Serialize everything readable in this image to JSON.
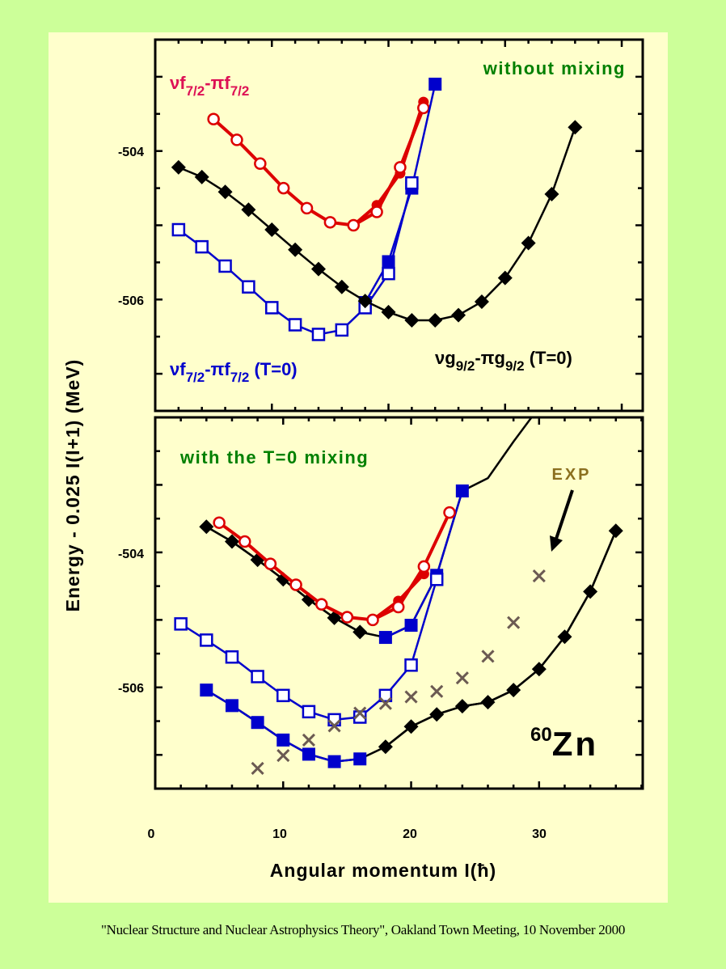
{
  "footer": "\"Nuclear Structure and Nuclear Astrophysics Theory\", Oakland Town Meeting, 10 November 2000",
  "colors": {
    "page_bg": "#ccff99",
    "slide_bg": "#ffffcc",
    "red": "#dd0000",
    "red_label": "#dd1155",
    "blue": "#0000cc",
    "black": "#000000",
    "green_label": "#008000",
    "exp_label": "#8b6f1e",
    "exp_marker": "#6b5a52"
  },
  "chart_data": [
    {
      "type": "line",
      "panel": "top",
      "title": "without mixing",
      "xlabel": "Angular momentum I(ħ)",
      "ylabel": "Energy - 0.025 I(I+1) (MeV)",
      "xlim": [
        0,
        41.8
      ],
      "ylim": [
        -507.5,
        -502.5
      ],
      "yticks": [
        -504,
        -506
      ],
      "ytick_labels": [
        "-504",
        "-506"
      ],
      "labels": {
        "red": {
          "main": "νf",
          "sub1": "7/2",
          "mid": "-πf",
          "sub2": "7/2",
          "tail": ""
        },
        "blue": {
          "main": "νf",
          "sub1": "7/2",
          "mid": "-πf",
          "sub2": "7/2",
          "tail": " (T=0)"
        },
        "black": {
          "main": "νg",
          "sub1": "9/2",
          "mid": "-πg",
          "sub2": "9/2",
          "tail": " (T=0)"
        }
      },
      "series": [
        {
          "name": "vf7/2-pif7/2 (filled)",
          "color": "red",
          "marker": "filled-circle",
          "x": [
            17,
            19,
            21,
            23
          ],
          "y": [
            -505.0,
            -504.73,
            -504.3,
            -503.34
          ]
        },
        {
          "name": "vf7/2-pif7/2",
          "color": "red",
          "marker": "open-circle",
          "x": [
            5,
            7,
            9,
            11,
            13,
            15,
            17,
            19,
            21,
            23
          ],
          "y": [
            -503.57,
            -503.85,
            -504.17,
            -504.5,
            -504.77,
            -504.96,
            -505.0,
            -504.82,
            -504.22,
            -503.42
          ]
        },
        {
          "name": "vf7/2-pif7/2 (T=0) filled",
          "color": "blue",
          "marker": "filled-square",
          "x": [
            18,
            20,
            22,
            24
          ],
          "y": [
            -506.04,
            -505.49,
            -504.5,
            -503.1
          ]
        },
        {
          "name": "vf7/2-pif7/2 (T=0)",
          "color": "blue",
          "marker": "open-square",
          "x": [
            2,
            4,
            6,
            8,
            10,
            12,
            14,
            16,
            18,
            20,
            22
          ],
          "y": [
            -505.06,
            -505.29,
            -505.55,
            -505.83,
            -506.11,
            -506.34,
            -506.47,
            -506.41,
            -506.11,
            -505.65,
            -504.43
          ]
        },
        {
          "name": "vg9/2-pig9/2 (T=0)",
          "color": "black",
          "marker": "diamond",
          "x": [
            2,
            4,
            6,
            8,
            10,
            12,
            14,
            16,
            18,
            20,
            22,
            24,
            26,
            28,
            30,
            32,
            34,
            36
          ],
          "y": [
            -504.22,
            -504.35,
            -504.55,
            -504.79,
            -505.06,
            -505.33,
            -505.59,
            -505.83,
            -506.02,
            -506.17,
            -506.28,
            -506.28,
            -506.21,
            -506.03,
            -505.71,
            -505.24,
            -504.58,
            -503.68
          ]
        }
      ]
    },
    {
      "type": "line",
      "panel": "bottom",
      "title": "with the T=0 mixing",
      "xlabel": "Angular momentum I(ħ)",
      "ylabel": "Energy - 0.025 I(I+1) (MeV)",
      "xlim": [
        0,
        38.1
      ],
      "ylim": [
        -507.5,
        -502.0
      ],
      "xticks": [
        0,
        10,
        20,
        30
      ],
      "xtick_labels": [
        "0",
        "10",
        "20",
        "30"
      ],
      "yticks": [
        -504,
        -506
      ],
      "ytick_labels": [
        "-504",
        "-506"
      ],
      "annotations": {
        "exp": "EXP",
        "nucleus_mass": "60",
        "nucleus_symbol": "Zn"
      },
      "series": [
        {
          "name": "upper band line",
          "color": "black",
          "marker": "none",
          "x": [
            4,
            6,
            8,
            10,
            12,
            14,
            16,
            18,
            20,
            22,
            24,
            26,
            28,
            30
          ],
          "y": [
            -503.62,
            -503.84,
            -504.11,
            -504.4,
            -504.7,
            -504.97,
            -505.18,
            -505.26,
            -505.08,
            -504.34,
            -503.09,
            -502.9,
            -502.36,
            -501.85
          ]
        },
        {
          "name": "upper band diamonds",
          "color": "black",
          "marker": "diamond",
          "x": [
            4,
            6,
            8,
            10,
            12,
            14,
            16
          ],
          "y": [
            -503.62,
            -503.84,
            -504.11,
            -504.4,
            -504.7,
            -504.97,
            -505.18
          ]
        },
        {
          "name": "upper band squares",
          "color": "blue",
          "marker": "filled-square",
          "x": [
            18,
            20,
            22,
            24
          ],
          "y": [
            -505.26,
            -505.08,
            -504.34,
            -503.09
          ]
        },
        {
          "name": "vf7/2-pif7/2 (filled)",
          "color": "red",
          "marker": "filled-circle",
          "x": [
            17,
            19,
            21
          ],
          "y": [
            -505.0,
            -504.72,
            -504.32
          ]
        },
        {
          "name": "vf7/2-pif7/2",
          "color": "red",
          "marker": "open-circle",
          "x": [
            5,
            7,
            9,
            11,
            13,
            15,
            17,
            19,
            21,
            23
          ],
          "y": [
            -503.56,
            -503.84,
            -504.17,
            -504.48,
            -504.77,
            -504.96,
            -505.0,
            -504.81,
            -504.21,
            -503.41
          ]
        },
        {
          "name": "vf7/2-pif7/2 (T=0)",
          "color": "blue",
          "marker": "open-square",
          "x": [
            2,
            4,
            6,
            8,
            10,
            12,
            14,
            16,
            18,
            20,
            22
          ],
          "y": [
            -505.06,
            -505.3,
            -505.55,
            -505.84,
            -506.12,
            -506.36,
            -506.48,
            -506.44,
            -506.12,
            -505.67,
            -504.4
          ]
        },
        {
          "name": "lower band line",
          "color": "black",
          "marker": "none",
          "x": [
            4,
            6,
            8,
            10,
            12,
            14,
            16,
            18,
            20,
            22,
            24,
            26,
            28,
            30,
            32,
            34,
            36
          ],
          "y": [
            -506.04,
            -506.27,
            -506.52,
            -506.78,
            -506.99,
            -507.1,
            -507.06,
            -506.88,
            -506.58,
            -506.4,
            -506.28,
            -506.22,
            -506.04,
            -505.73,
            -505.25,
            -504.58,
            -503.68
          ]
        },
        {
          "name": "lower band squares",
          "color": "blue",
          "marker": "filled-square",
          "x": [
            4,
            6,
            8,
            10,
            12,
            14,
            16
          ],
          "y": [
            -506.04,
            -506.27,
            -506.52,
            -506.78,
            -506.99,
            -507.1,
            -507.06
          ]
        },
        {
          "name": "lower band diamonds",
          "color": "black",
          "marker": "diamond",
          "x": [
            18,
            20,
            22,
            24,
            26,
            28,
            30,
            32,
            34,
            36
          ],
          "y": [
            -506.88,
            -506.58,
            -506.4,
            -506.28,
            -506.22,
            -506.04,
            -505.73,
            -505.25,
            -504.58,
            -503.68
          ]
        },
        {
          "name": "EXP",
          "color": "exp_marker",
          "marker": "cross",
          "x": [
            8,
            10,
            12,
            14,
            16,
            18,
            20,
            22,
            24,
            26,
            28,
            30
          ],
          "y": [
            -507.2,
            -507.01,
            -506.78,
            -506.57,
            -506.38,
            -506.24,
            -506.14,
            -506.06,
            -505.86,
            -505.54,
            -505.04,
            -504.35
          ]
        }
      ]
    }
  ]
}
